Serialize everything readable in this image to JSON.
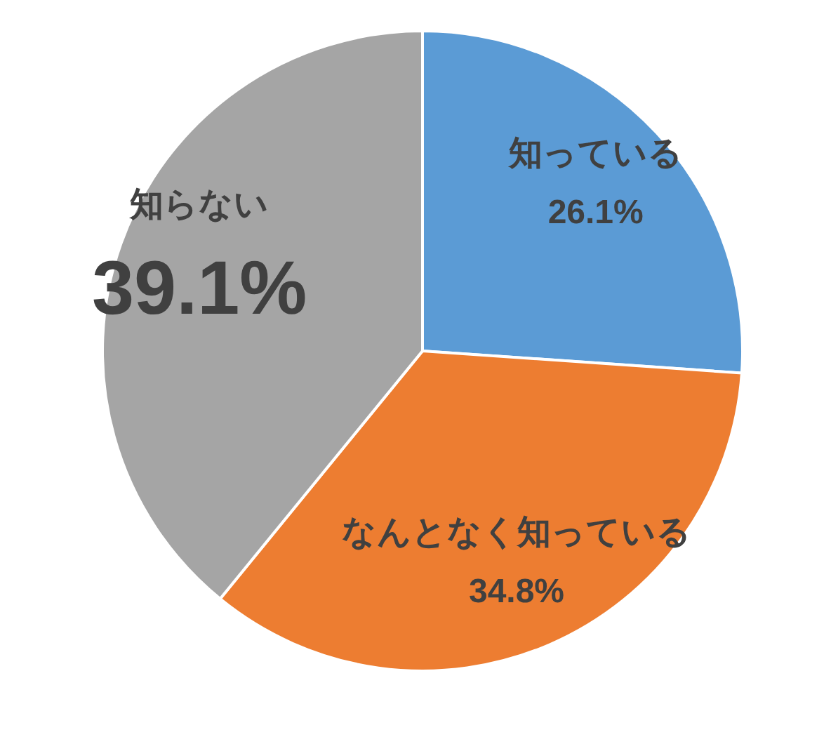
{
  "chart_data": {
    "type": "pie",
    "categories": [
      "知っている",
      "なんとなく知っている",
      "知らない"
    ],
    "values": [
      26.1,
      34.8,
      39.1
    ],
    "value_labels": [
      "26.1%",
      "34.8%",
      "39.1%"
    ],
    "colors": [
      "#5b9bd5",
      "#ed7d31",
      "#a5a5a5"
    ]
  }
}
